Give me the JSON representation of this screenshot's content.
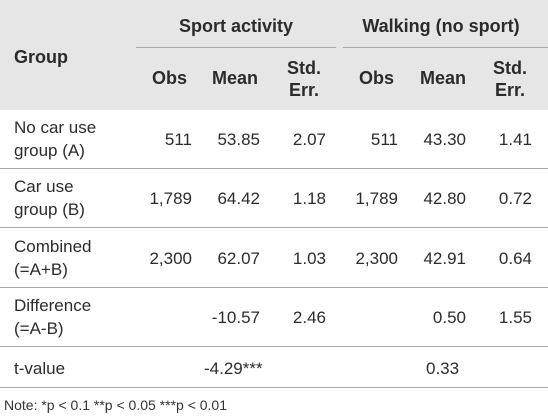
{
  "table": {
    "group_header": "Group",
    "col_groups": [
      "Sport activity",
      "Walking (no sport)"
    ],
    "sub_headers": {
      "obs": "Obs",
      "mean": "Mean",
      "se_line1": "Std.",
      "se_line2": "Err."
    },
    "rows": [
      {
        "label1": "No car use",
        "label2": "group (A)",
        "s_obs": "511",
        "s_mean": "53.85",
        "s_se": "2.07",
        "w_obs": "511",
        "w_mean": "43.30",
        "w_se": "1.41"
      },
      {
        "label1": "Car use",
        "label2": "group (B)",
        "s_obs": "1,789",
        "s_mean": "64.42",
        "s_se": "1.18",
        "w_obs": "1,789",
        "w_mean": "42.80",
        "w_se": "0.72"
      },
      {
        "label1": "Combined",
        "label2": "(=A+B)",
        "s_obs": "2,300",
        "s_mean": "62.07",
        "s_se": "1.03",
        "w_obs": "2,300",
        "w_mean": "42.91",
        "w_se": "0.64"
      },
      {
        "label1": "Difference",
        "label2": "(=A-B)",
        "s_obs": "",
        "s_mean": "-10.57",
        "s_se": "2.46",
        "w_obs": "",
        "w_mean": "0.50",
        "w_se": "1.55"
      }
    ],
    "tvalue": {
      "label": "t-value",
      "sport": "-4.29***",
      "walking": "0.33"
    }
  },
  "note": "Note: *p < 0.1 **p < 0.05 ***p < 0.01"
}
